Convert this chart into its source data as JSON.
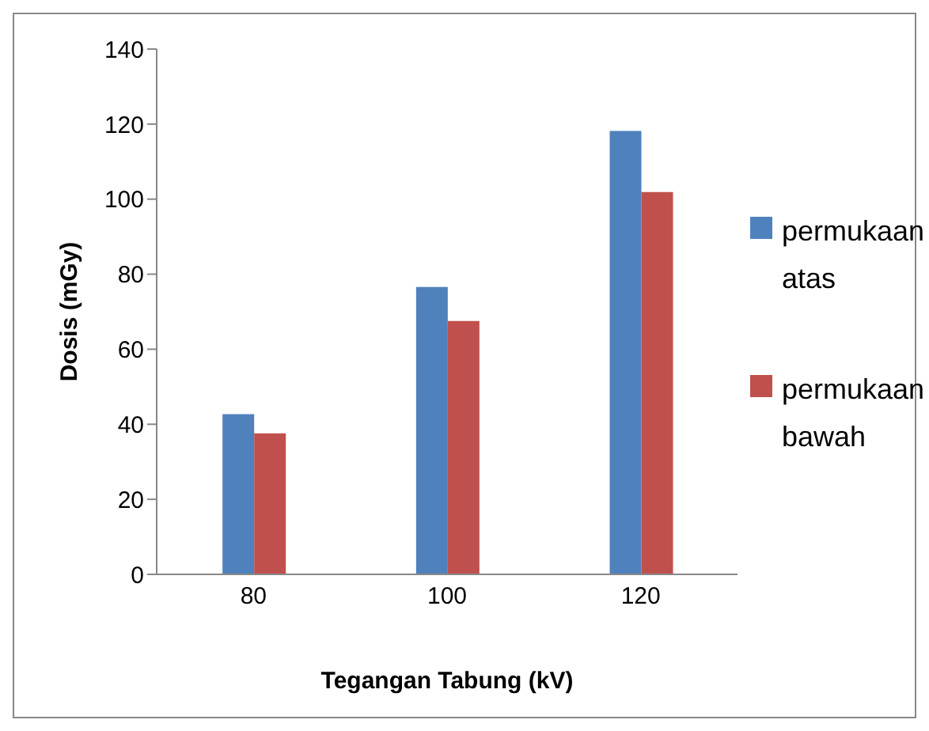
{
  "chart_data": {
    "type": "bar",
    "xlabel": "Tegangan Tabung (kV)",
    "ylabel": "Dosis (mGy)",
    "categories": [
      "80",
      "100",
      "120"
    ],
    "series": [
      {
        "name": "permukaan atas",
        "color": "#4f81bd",
        "values": [
          42.7,
          76.6,
          118.2
        ]
      },
      {
        "name": "permukaan bawah",
        "color": "#c0504d",
        "values": [
          37.6,
          67.5,
          101.9
        ]
      }
    ],
    "ylim": [
      0,
      140
    ],
    "yticks": [
      0,
      20,
      40,
      60,
      80,
      100,
      120,
      140
    ],
    "grid": false,
    "legend": "right"
  }
}
